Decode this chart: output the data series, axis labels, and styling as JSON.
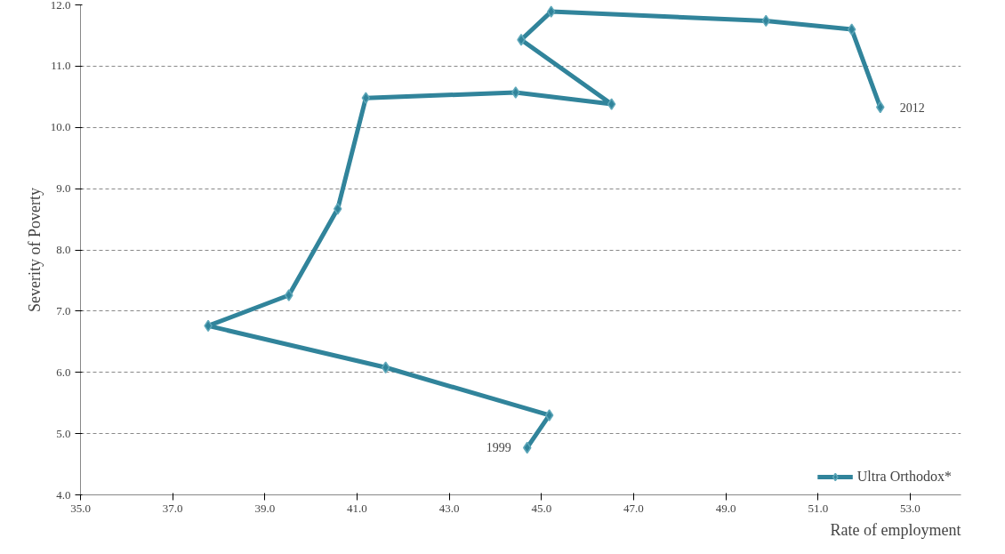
{
  "chart_data": {
    "type": "line",
    "xlabel": "Rate of employment",
    "ylabel": "Severity of Poverty",
    "x": [
      44.69,
      45.17,
      41.62,
      37.77,
      39.52,
      40.58,
      41.19,
      44.44,
      46.52,
      44.56,
      45.21,
      49.87,
      51.73,
      52.35
    ],
    "series": [
      {
        "name": "Ultra Orthodox*",
        "color": "#31849b",
        "values": [
          4.77,
          5.3,
          6.08,
          6.76,
          7.26,
          8.67,
          10.48,
          10.57,
          10.38,
          11.43,
          11.89,
          11.74,
          11.6,
          10.33
        ]
      }
    ],
    "annotations": [
      {
        "text": "1999",
        "x": 44.69,
        "y": 4.77
      },
      {
        "text": "2012",
        "x": 52.35,
        "y": 10.33
      }
    ],
    "xlim": [
      35,
      54.1
    ],
    "xticks": [
      {
        "value": 35,
        "label": "35.0"
      },
      {
        "value": 37,
        "label": "37.0"
      },
      {
        "value": 39,
        "label": "39.0"
      },
      {
        "value": 41,
        "label": "41.0"
      },
      {
        "value": 43,
        "label": "43.0"
      },
      {
        "value": 45,
        "label": "45.0"
      },
      {
        "value": 47,
        "label": "47.0"
      },
      {
        "value": 49,
        "label": "49.0"
      },
      {
        "value": 51,
        "label": "51.0"
      },
      {
        "value": 53,
        "label": "53.0"
      }
    ],
    "ylim": [
      4,
      12
    ],
    "yticks": [
      {
        "value": 4,
        "label": "4.0"
      },
      {
        "value": 5,
        "label": "5.0"
      },
      {
        "value": 6,
        "label": "6.0"
      },
      {
        "value": 7,
        "label": "7.0"
      },
      {
        "value": 8,
        "label": "8.0"
      },
      {
        "value": 9,
        "label": "9.0"
      },
      {
        "value": 10,
        "label": "10.0"
      },
      {
        "value": 11,
        "label": "11.0"
      },
      {
        "value": 12,
        "label": "12.0"
      }
    ],
    "grid": "y",
    "legend": "bottom right",
    "marker": "diamond",
    "line_style": "solid"
  }
}
